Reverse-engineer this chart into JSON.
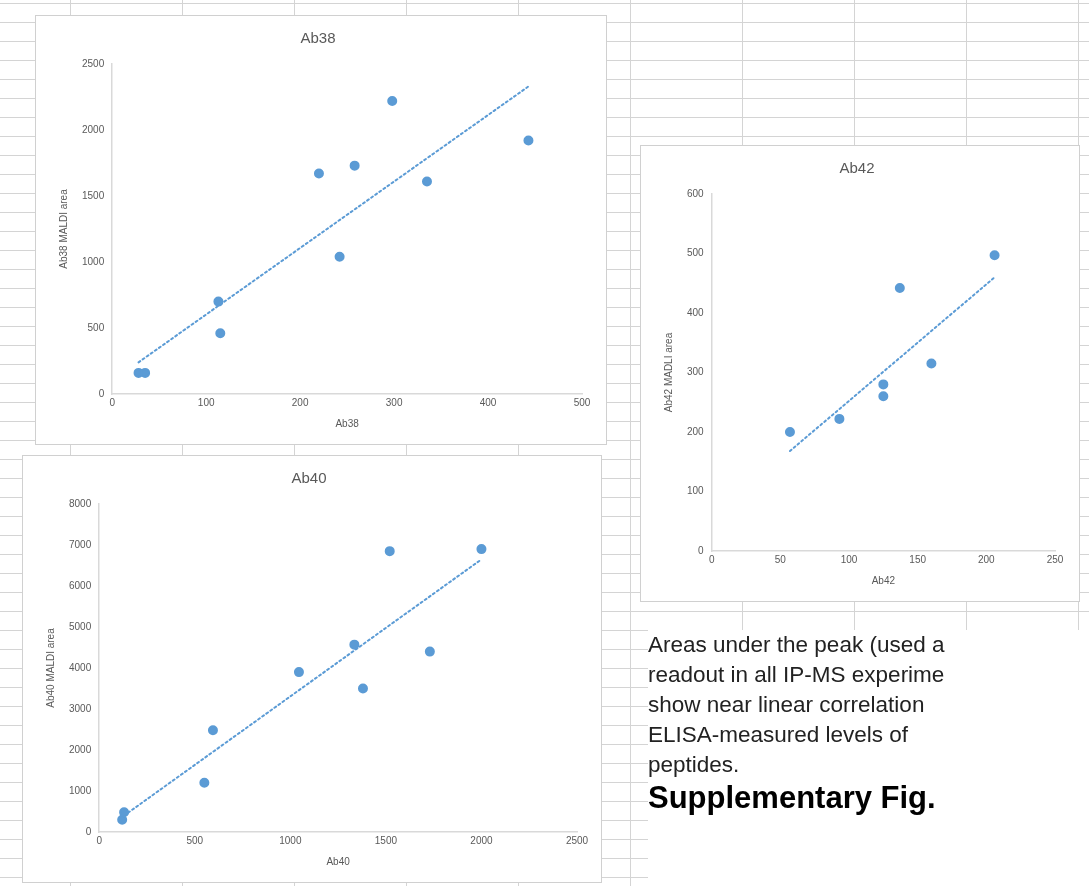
{
  "chart_data": [
    {
      "type": "scatter",
      "title": "Ab38",
      "xlabel": "Ab38",
      "ylabel": "Ab38 MALDI area",
      "xlim": [
        0,
        500
      ],
      "xticks": [
        0,
        100,
        200,
        300,
        400,
        500
      ],
      "ylim": [
        0,
        2500
      ],
      "yticks": [
        0,
        500,
        1000,
        1500,
        2000,
        2500
      ],
      "grid": false,
      "legend": false,
      "series": [
        {
          "type": "scatter",
          "color": "#5b9bd5",
          "marker": "circle",
          "x": [
            28,
            35,
            113,
            115,
            220,
            242,
            258,
            298,
            335,
            443
          ],
          "values": [
            160,
            160,
            700,
            460,
            1670,
            1040,
            1730,
            2220,
            1610,
            1920
          ]
        },
        {
          "type": "line",
          "color": "#5b9bd5",
          "marker": "none",
          "line_style": "dotted",
          "x": [
            28,
            443
          ],
          "values": [
            240,
            2330
          ]
        }
      ]
    },
    {
      "type": "scatter",
      "title": "Ab42",
      "xlabel": "Ab42",
      "ylabel": "Ab42 MADLI area",
      "xlim": [
        0,
        250
      ],
      "xticks": [
        0,
        50,
        100,
        150,
        200,
        250
      ],
      "ylim": [
        0,
        600
      ],
      "yticks": [
        0,
        100,
        200,
        300,
        400,
        500,
        600
      ],
      "grid": false,
      "legend": false,
      "series": [
        {
          "type": "scatter",
          "color": "#5b9bd5",
          "marker": "circle",
          "x": [
            57,
            93,
            125,
            125,
            137,
            160,
            206
          ],
          "values": [
            200,
            222,
            280,
            260,
            442,
            315,
            497
          ]
        },
        {
          "type": "line",
          "color": "#5b9bd5",
          "marker": "none",
          "line_style": "dotted",
          "x": [
            57,
            206
          ],
          "values": [
            168,
            460
          ]
        }
      ]
    },
    {
      "type": "scatter",
      "title": "Ab40",
      "xlabel": "Ab40",
      "ylabel": "Ab40 MALDI area",
      "xlim": [
        0,
        2500
      ],
      "xticks": [
        0,
        500,
        1000,
        1500,
        2000,
        2500
      ],
      "ylim": [
        0,
        8000
      ],
      "yticks": [
        0,
        1000,
        2000,
        3000,
        4000,
        5000,
        6000,
        7000,
        8000
      ],
      "grid": false,
      "legend": false,
      "series": [
        {
          "type": "scatter",
          "color": "#5b9bd5",
          "marker": "circle",
          "x": [
            120,
            130,
            550,
            595,
            1045,
            1335,
            1380,
            1520,
            1730,
            2000
          ],
          "values": [
            300,
            480,
            1200,
            2480,
            3900,
            4570,
            3500,
            6850,
            4400,
            6900
          ]
        },
        {
          "type": "line",
          "color": "#5b9bd5",
          "marker": "none",
          "line_style": "dotted",
          "x": [
            130,
            2000
          ],
          "values": [
            400,
            6650
          ]
        }
      ]
    },
    {
      "type": "other",
      "title": "Supplementary Fig.",
      "annotations": [
        "Areas under the peak (used a",
        "readout in all IP-MS experime",
        "show near linear correlation",
        "ELISA-measured levels of",
        "peptides."
      ]
    }
  ]
}
